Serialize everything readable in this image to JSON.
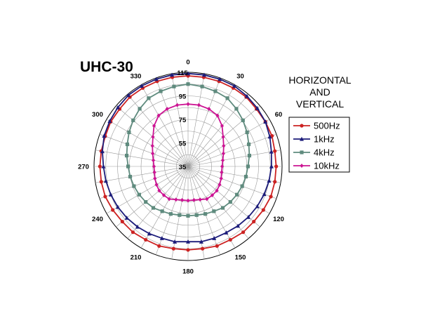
{
  "chart_data": {
    "type": "polar",
    "title": "UHC-30",
    "angle_ticks": [
      0,
      30,
      60,
      90,
      120,
      150,
      180,
      210,
      240,
      270,
      300,
      330
    ],
    "radial_ticks": [
      35,
      55,
      75,
      95,
      115
    ],
    "rlim": [
      35,
      115
    ],
    "grid": true,
    "legend_title": [
      "HORIZONTAL",
      "AND",
      "VERTICAL"
    ],
    "legend_position": "right",
    "angles": [
      0,
      10,
      20,
      30,
      40,
      50,
      60,
      70,
      80,
      90,
      100,
      110,
      120,
      130,
      140,
      150,
      160,
      170,
      180,
      190,
      200,
      210,
      220,
      230,
      240,
      250,
      260,
      270,
      280,
      290,
      300,
      310,
      320,
      330,
      340,
      350
    ],
    "series": [
      {
        "name": "500Hz",
        "color": "#cc2222",
        "marker": "circle",
        "values": [
          112,
          112,
          112,
          112,
          112,
          111,
          111,
          111,
          110,
          110,
          110,
          110,
          109,
          108,
          108,
          107,
          107,
          106,
          106,
          106,
          107,
          107,
          108,
          108,
          109,
          110,
          110,
          110,
          110,
          110,
          111,
          111,
          112,
          112,
          112,
          112
        ]
      },
      {
        "name": "1kHz",
        "color": "#1c1c7a",
        "marker": "triangle",
        "values": [
          114,
          114,
          114,
          114,
          113,
          112,
          111,
          109,
          107,
          106,
          105,
          104,
          103,
          102,
          101,
          100,
          100,
          100,
          99,
          100,
          100,
          101,
          102,
          103,
          104,
          105,
          106,
          107,
          109,
          111,
          112,
          113,
          114,
          114,
          114,
          114
        ]
      },
      {
        "name": "4kHz",
        "color": "#5f8b7e",
        "marker": "square",
        "values": [
          105,
          104,
          103,
          102,
          99,
          96,
          93,
          90,
          88,
          86,
          85,
          84,
          83,
          82,
          81,
          79,
          78,
          77,
          77,
          77,
          78,
          79,
          81,
          82,
          83,
          84,
          85,
          86,
          88,
          90,
          93,
          96,
          99,
          102,
          103,
          104
        ]
      },
      {
        "name": "10kHz",
        "color": "#cc1493",
        "marker": "diamond",
        "values": [
          88,
          88,
          87,
          85,
          80,
          74,
          70,
          67,
          65,
          64,
          64,
          65,
          66,
          67,
          67,
          67,
          65,
          64,
          64,
          64,
          65,
          67,
          67,
          67,
          66,
          65,
          64,
          64,
          65,
          67,
          70,
          74,
          80,
          85,
          87,
          88
        ]
      }
    ]
  }
}
